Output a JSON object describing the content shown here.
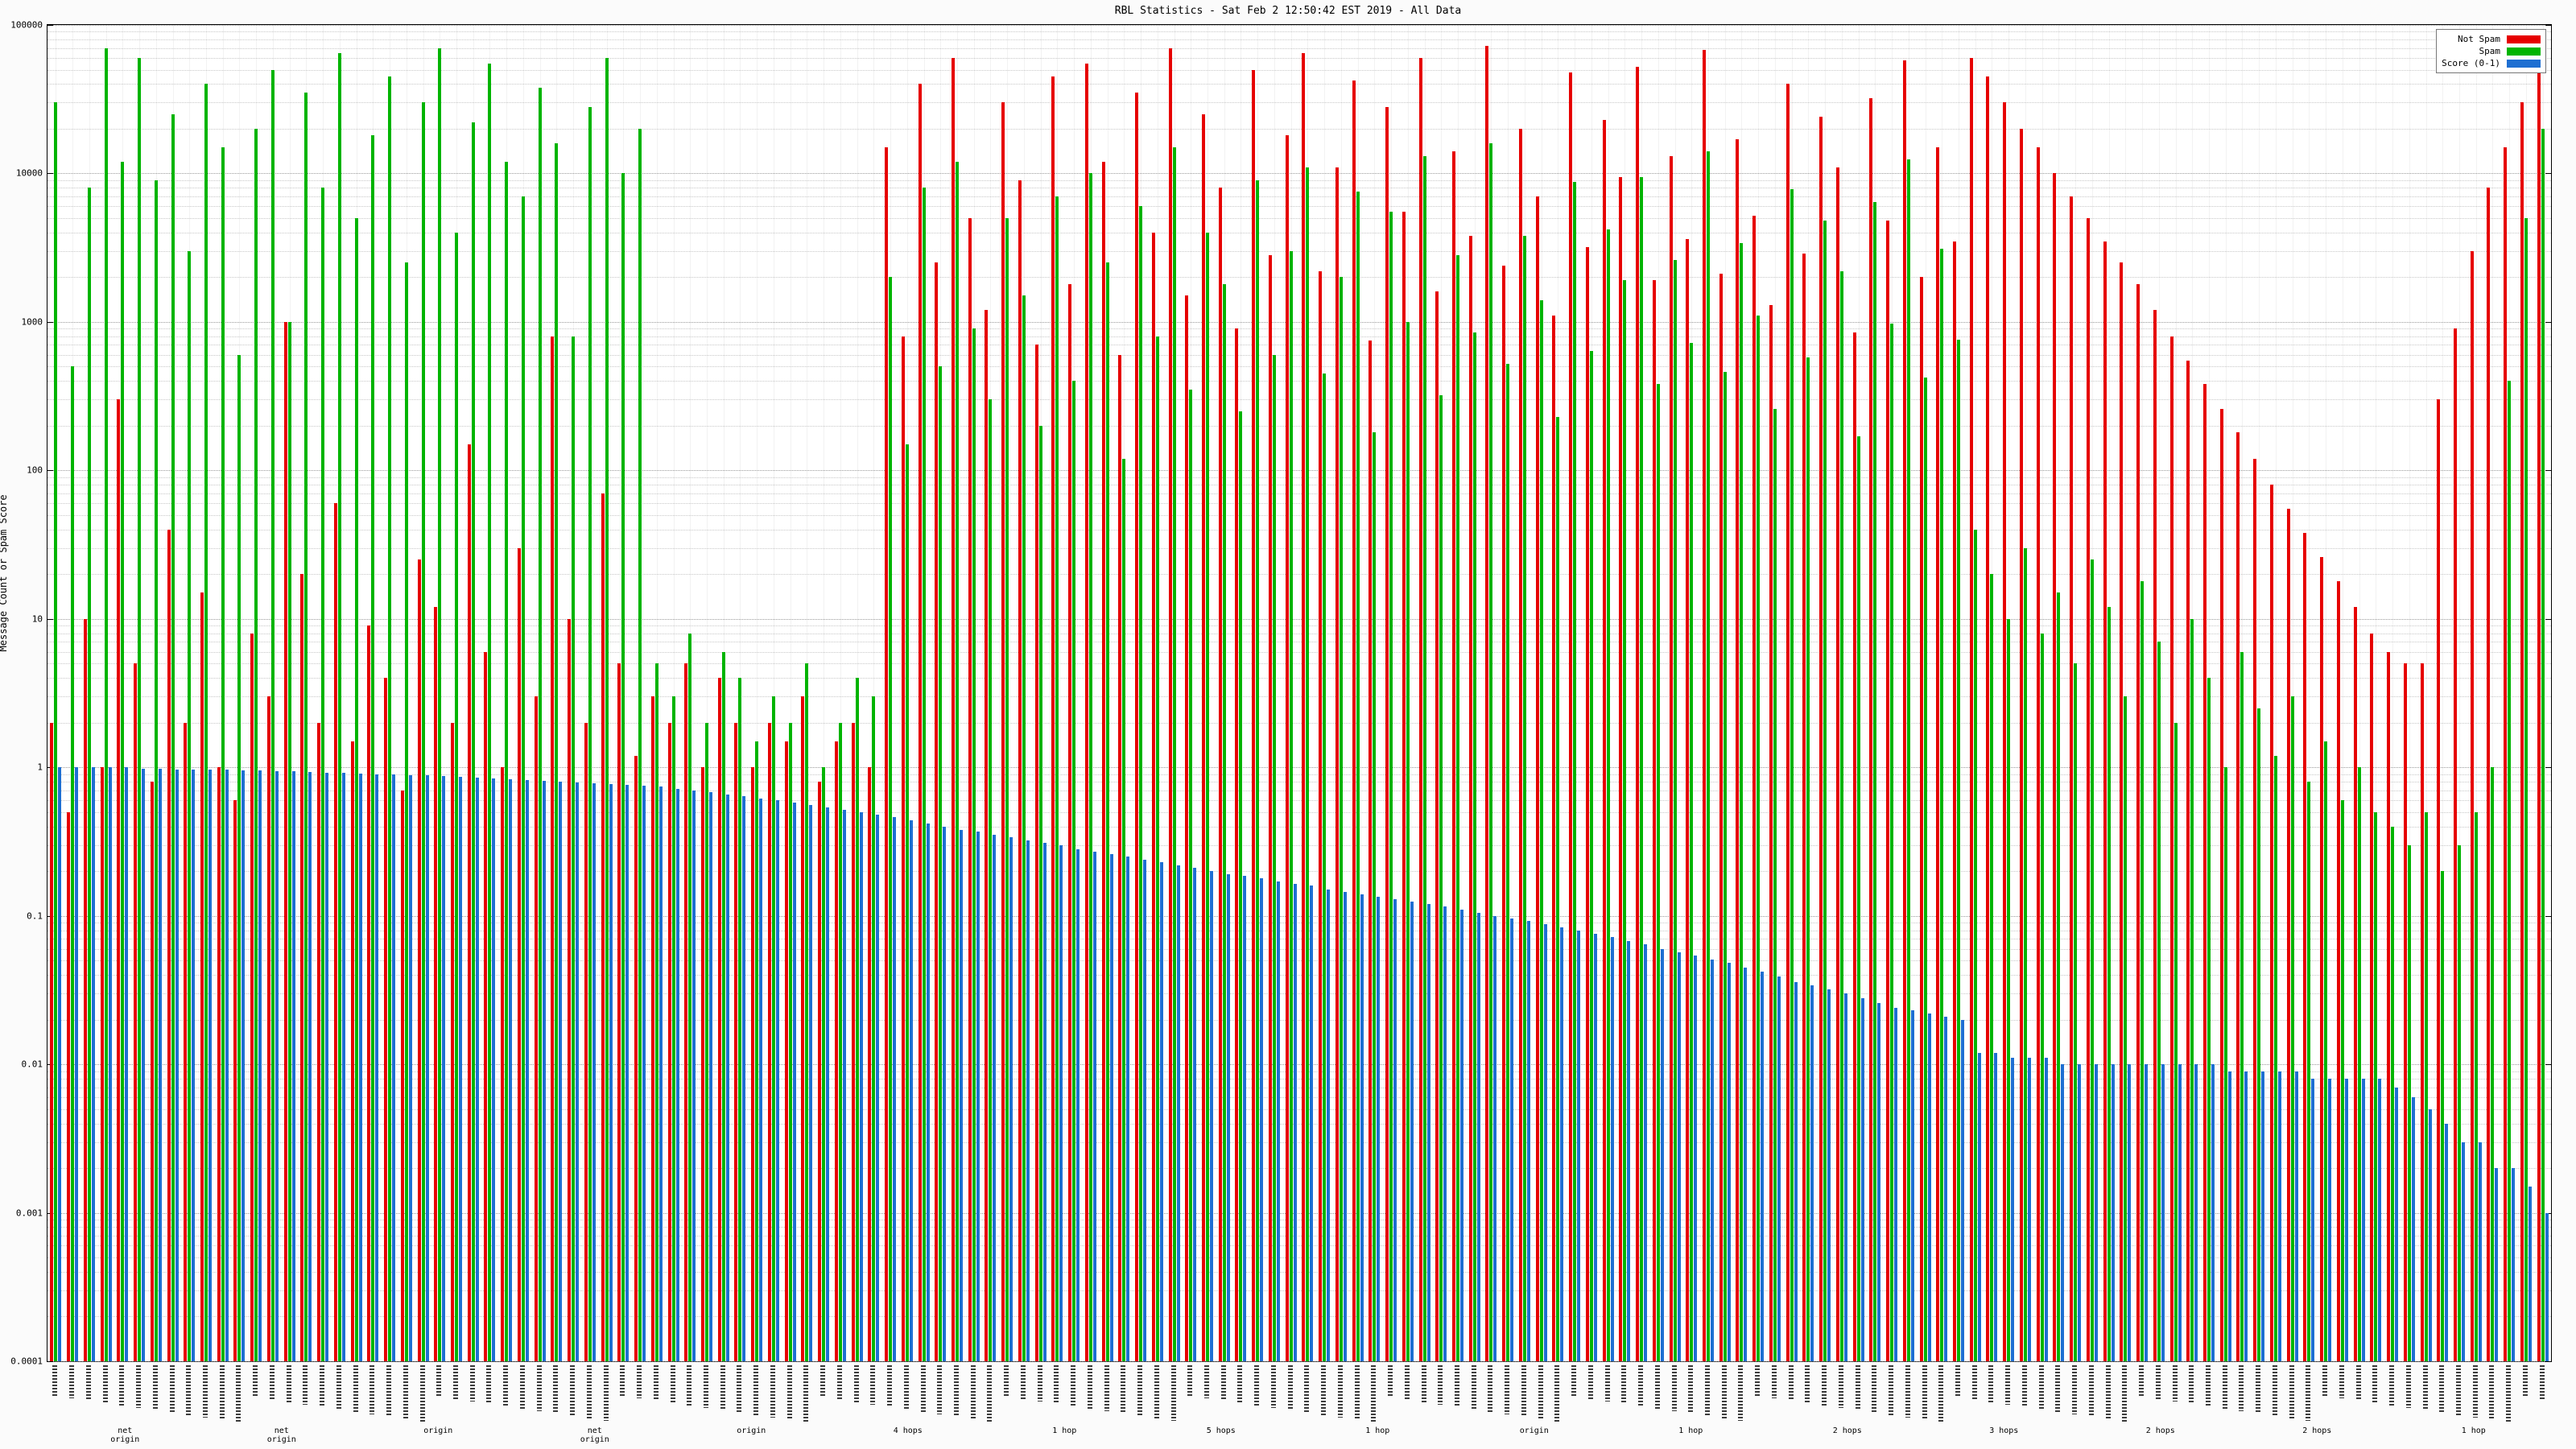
{
  "page": {
    "title": "RBL Statistics - Sat Feb 2 12:50:42 EST 2019 - All Data"
  },
  "chart_data": {
    "type": "bar",
    "title": "RBL Statistics - Sat Feb 2 12:50:42 EST 2019 - All Data",
    "xlabel": "",
    "ylabel": "Message Count or Spam Score",
    "y_scale": "log10",
    "ylim": [
      0.0001,
      100000
    ],
    "y_ticks": [
      "100000",
      "10000",
      "1000",
      "100",
      "10",
      "1",
      "0.1",
      "0.01",
      "0.001",
      "0.0001"
    ],
    "grid": true,
    "legend_position": "top-right",
    "x_tick_labels_note": "dense rotated RBL host-name labels (illegible at this resolution)",
    "group_labels": [
      "net\norigin",
      "net\norigin",
      "origin",
      "net\norigin",
      "origin",
      "4 hops",
      "1 hop",
      "5 hops",
      "1 hop",
      "origin",
      "1 hop",
      "2 hops",
      "3 hops",
      "2 hops",
      "2 hops",
      "1 hop"
    ],
    "legend": [
      {
        "label": "Not Spam",
        "color": "#e60000"
      },
      {
        "label": "Spam",
        "color": "#00b400"
      },
      {
        "label": "Score (0-1)",
        "color": "#1e6fd2"
      }
    ],
    "series": [
      {
        "name": "Not Spam",
        "color": "#e60000",
        "values": [
          2,
          0.5,
          10,
          1,
          300,
          5,
          0.8,
          40,
          2,
          15,
          1,
          0.6,
          8,
          3,
          1000,
          20,
          2,
          60,
          1.5,
          9,
          4,
          0.7,
          25,
          12,
          2,
          150,
          6,
          1,
          30,
          3,
          800,
          10,
          2,
          70,
          5,
          1.2,
          3,
          2,
          5,
          1,
          4,
          2,
          1,
          2,
          1.5,
          3,
          0.8,
          1.5,
          2,
          1,
          15000,
          800,
          40000,
          2500,
          60000,
          5000,
          1200,
          30000,
          9000,
          700,
          45000,
          1800,
          55000,
          12000,
          600,
          35000,
          4000,
          70000,
          1500,
          25000,
          8000,
          900,
          50000,
          2800,
          18000,
          65000,
          2200,
          11000,
          42000,
          750,
          28000,
          5500,
          60000,
          1600,
          14000,
          3800,
          72000,
          2400,
          20000,
          7000,
          1100,
          48000,
          3200,
          23000,
          9500,
          52000,
          1900,
          13000,
          3600,
          68000,
          2100,
          17000,
          5200,
          1300,
          40000,
          2900,
          24000,
          11000,
          850,
          32000,
          4800,
          58000,
          2000,
          15000,
          3500,
          60000,
          45000,
          30000,
          20000,
          15000,
          10000,
          7000,
          5000,
          3500,
          2500,
          1800,
          1200,
          800,
          550,
          380,
          260,
          180,
          120,
          80,
          55,
          38,
          26,
          18,
          12,
          8,
          6,
          5,
          5,
          300,
          900,
          3000,
          8000,
          15000,
          30000,
          60000
        ]
      },
      {
        "name": "Spam",
        "color": "#00b400",
        "values": [
          30000,
          500,
          8000,
          70000,
          12000,
          60000,
          9000,
          25000,
          3000,
          40000,
          15000,
          600,
          20000,
          50000,
          1000,
          35000,
          8000,
          65000,
          5000,
          18000,
          45000,
          2500,
          30000,
          70000,
          4000,
          22000,
          55000,
          12000,
          7000,
          38000,
          16000,
          800,
          28000,
          60000,
          10000,
          20000,
          5,
          3,
          8,
          2,
          6,
          4,
          1.5,
          3,
          2,
          5,
          1,
          2,
          4,
          3,
          2000,
          150,
          8000,
          500,
          12000,
          900,
          300,
          5000,
          1500,
          200,
          7000,
          400,
          10000,
          2500,
          120,
          6000,
          800,
          15000,
          350,
          4000,
          1800,
          250,
          9000,
          600,
          3000,
          11000,
          450,
          2000,
          7500,
          180,
          5500,
          1000,
          13000,
          320,
          2800,
          850,
          16000,
          520,
          3800,
          1400,
          230,
          8800,
          640,
          4200,
          1900,
          9500,
          380,
          2600,
          720,
          14000,
          460,
          3400,
          1100,
          260,
          7800,
          580,
          4800,
          2200,
          170,
          6400,
          980,
          12500,
          420,
          3100,
          760,
          40,
          20,
          10,
          30,
          8,
          15,
          5,
          25,
          12,
          3,
          18,
          7,
          2,
          10,
          4,
          1,
          6,
          2.5,
          1.2,
          3,
          0.8,
          1.5,
          0.6,
          1,
          0.5,
          0.4,
          0.3,
          0.5,
          0.2,
          0.3,
          0.5,
          1,
          400,
          5000,
          20000
        ]
      },
      {
        "name": "Score (0-1)",
        "color": "#1e6fd2",
        "values": [
          1.0,
          1.0,
          1.0,
          1.0,
          1.0,
          0.98,
          0.98,
          0.97,
          0.97,
          0.96,
          0.96,
          0.95,
          0.95,
          0.94,
          0.94,
          0.93,
          0.92,
          0.92,
          0.91,
          0.9,
          0.9,
          0.89,
          0.88,
          0.87,
          0.86,
          0.85,
          0.84,
          0.83,
          0.82,
          0.81,
          0.8,
          0.79,
          0.78,
          0.77,
          0.76,
          0.75,
          0.74,
          0.72,
          0.7,
          0.68,
          0.66,
          0.64,
          0.62,
          0.6,
          0.58,
          0.56,
          0.54,
          0.52,
          0.5,
          0.48,
          0.46,
          0.44,
          0.42,
          0.4,
          0.38,
          0.37,
          0.35,
          0.34,
          0.32,
          0.31,
          0.3,
          0.28,
          0.27,
          0.26,
          0.25,
          0.24,
          0.23,
          0.22,
          0.21,
          0.2,
          0.19,
          0.185,
          0.18,
          0.17,
          0.165,
          0.16,
          0.15,
          0.145,
          0.14,
          0.135,
          0.13,
          0.125,
          0.12,
          0.115,
          0.11,
          0.105,
          0.1,
          0.096,
          0.092,
          0.088,
          0.084,
          0.08,
          0.076,
          0.072,
          0.068,
          0.064,
          0.06,
          0.057,
          0.054,
          0.051,
          0.048,
          0.045,
          0.042,
          0.039,
          0.036,
          0.034,
          0.032,
          0.03,
          0.028,
          0.026,
          0.024,
          0.023,
          0.022,
          0.021,
          0.02,
          0.012,
          0.012,
          0.011,
          0.011,
          0.011,
          0.01,
          0.01,
          0.01,
          0.01,
          0.01,
          0.01,
          0.01,
          0.01,
          0.01,
          0.01,
          0.009,
          0.009,
          0.009,
          0.009,
          0.009,
          0.008,
          0.008,
          0.008,
          0.008,
          0.008,
          0.007,
          0.006,
          0.005,
          0.004,
          0.003,
          0.003,
          0.002,
          0.002,
          0.0015,
          0.001
        ]
      }
    ]
  }
}
